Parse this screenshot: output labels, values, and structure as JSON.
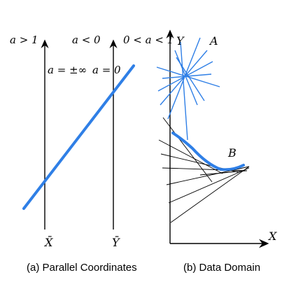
{
  "panel_a": {
    "caption": "(a) Parallel Coordinates",
    "labels": {
      "a_gt_1": "a > 1",
      "a_lt_0": "a < 0",
      "a_between": "0 < a < 1",
      "a_pm_inf": "a = ±∞",
      "a_eq_0": "a = 0",
      "x_bar": "X̄",
      "y_bar": "Ȳ"
    }
  },
  "panel_b": {
    "caption": "(b) Data Domain",
    "labels": {
      "y_axis": "Y",
      "x_axis": "X",
      "point_a": "A",
      "point_b": "B"
    }
  },
  "colors": {
    "accent": "#2f7fe6",
    "ink": "#000000"
  }
}
